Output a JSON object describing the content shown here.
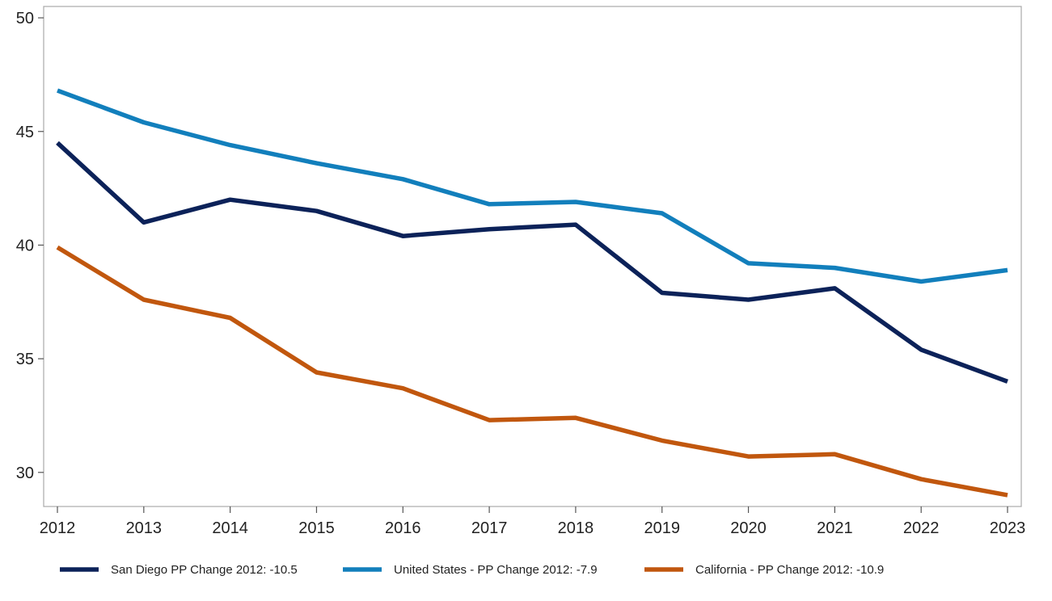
{
  "chart_data": {
    "type": "line",
    "title": "",
    "xlabel": "",
    "ylabel": "",
    "x": [
      "2012",
      "2013",
      "2014",
      "2015",
      "2016",
      "2017",
      "2018",
      "2019",
      "2020",
      "2021",
      "2022",
      "2023"
    ],
    "y_ticks": [
      "30",
      "35",
      "40",
      "45",
      "50"
    ],
    "ylim": [
      28.5,
      50.5
    ],
    "grid": false,
    "legend_position": "bottom",
    "series": [
      {
        "name": "San Diego PP Change 2012: -10.5",
        "color": "#0c2259",
        "values": [
          44.5,
          41.0,
          42.0,
          41.5,
          40.4,
          40.7,
          40.9,
          37.9,
          37.6,
          38.1,
          35.4,
          34.0
        ]
      },
      {
        "name": "United States - PP Change 2012: -7.9",
        "color": "#127fbc",
        "values": [
          46.8,
          45.4,
          44.4,
          43.6,
          42.9,
          41.8,
          41.9,
          41.4,
          39.2,
          39.0,
          38.4,
          38.9
        ]
      },
      {
        "name": "California - PP Change 2012: -10.9",
        "color": "#c1570e",
        "values": [
          39.9,
          37.6,
          36.8,
          34.4,
          33.7,
          32.3,
          32.4,
          31.4,
          30.7,
          30.8,
          29.7,
          29.0
        ]
      }
    ]
  }
}
